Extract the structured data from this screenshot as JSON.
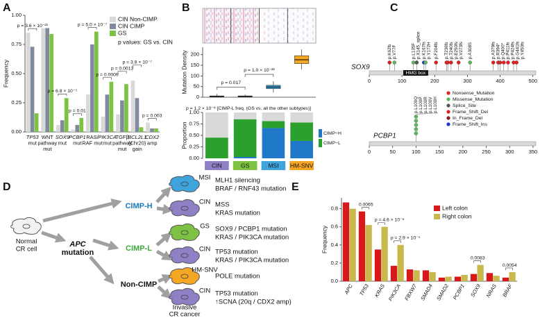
{
  "panel_labels": [
    "A",
    "B",
    "C",
    "D",
    "E"
  ],
  "chart_data": [
    {
      "type": "bar",
      "ylabel": "Frequency",
      "categories": [
        [
          "TP53",
          "mut"
        ],
        [
          "WNT",
          "pathway",
          "mut"
        ],
        [
          "SOX9",
          "mut"
        ],
        [
          "PCBP1",
          "mut"
        ],
        [
          "RAS/",
          "RAF mut"
        ],
        [
          "PIK3CA",
          "mut"
        ],
        [
          "TGFβ",
          "pathway",
          "mut"
        ],
        [
          "BCL2L1",
          "(Chr20)",
          "gain"
        ],
        [
          "CDX2",
          "amp"
        ]
      ],
      "series": [
        {
          "name": "CIN Non-CIMP",
          "color": "#d9d9d9",
          "values": [
            0.85,
            0.89,
            0.06,
            0.02,
            0.32,
            0.13,
            0.15,
            0.44,
            0.08
          ]
        },
        {
          "name": "CIN CIMP",
          "color": "#7f8a9c",
          "values": [
            0.73,
            0.89,
            0.1,
            0.06,
            0.75,
            0.32,
            0.27,
            0.29,
            0.03
          ]
        },
        {
          "name": "GS",
          "color": "#7dc242",
          "values": [
            0.16,
            0.84,
            0.29,
            0.12,
            0.86,
            0.43,
            0.41,
            0.04,
            0.03
          ]
        }
      ],
      "annotations": [
        "p = 3.6 × 10⁻²¹",
        null,
        "p = 6.8 × 10⁻⁵",
        "p = 0.01",
        "p = 5.0 × 10⁻⁷",
        "p = 0.0009",
        "p = 0.0013",
        "p = 3.8 × 10⁻⁷",
        "p = 0.003"
      ],
      "note": "p values: GS vs. CIN",
      "ylim": [
        0,
        1
      ],
      "yticks": [
        {
          "value": 0,
          "label": "0.00"
        },
        0.25,
        {
          "value": 0.5,
          "label": "0.50"
        },
        0.75,
        {
          "value": 1,
          "label": "1.00"
        }
      ]
    },
    {
      "type": "box",
      "ylabel": "Mutation Density",
      "categories": [
        "CIN",
        "GS",
        "MSI",
        "HM-SNV"
      ],
      "colors": [
        "#8f7fc4",
        "#7dc242",
        "#3fa3dc",
        "#f5a623"
      ],
      "boxes": [
        {
          "min": 0,
          "q1": 2,
          "median": 4,
          "q3": 6,
          "max": 15
        },
        {
          "min": 0,
          "q1": 2,
          "median": 4,
          "q3": 6,
          "max": 13
        },
        {
          "min": 22,
          "q1": 40,
          "median": 48,
          "q3": 56,
          "max": 75
        },
        {
          "min": 130,
          "q1": 158,
          "median": 176,
          "q3": 195,
          "max": 225
        }
      ],
      "comparisons": [
        {
          "between": [
            "CIN",
            "GS"
          ],
          "text": "p = 0.017"
        },
        {
          "between": [
            "GS",
            "MSI"
          ],
          "text": "p = 1.0 × 10⁻²²"
        }
      ],
      "ylim": [
        0,
        235
      ],
      "yticks": [
        0,
        50,
        100,
        150,
        200
      ]
    },
    {
      "type": "stacked_bar",
      "ylabel": "Proportion",
      "categories": [
        "CIN",
        "GS",
        "MSI",
        "HM-SNV"
      ],
      "category_colors": [
        "#8f7fc4",
        "#7dc242",
        "#3fa3dc",
        "#f5a623"
      ],
      "series": [
        {
          "name": "CIMP−H",
          "color": "#1f78c8",
          "values": [
            0,
            0.03,
            0.66,
            0.38
          ]
        },
        {
          "name": "CIMP−L",
          "color": "#2ca02c",
          "values": [
            0.45,
            0.82,
            0.15,
            0.4
          ]
        }
      ],
      "annotation": "p = 1.2 × 10⁻⁸ [CIMP-L freq. (GS vs. all the other subtypes)]",
      "ylim": [
        0,
        1
      ],
      "yticks": [
        {
          "value": 0,
          "label": "0.00"
        },
        0.25,
        {
          "value": 0.5,
          "label": "0.50"
        },
        0.75,
        {
          "value": 1,
          "label": "1.00"
        }
      ]
    },
    {
      "type": "lollipop",
      "gene": "SOX9",
      "domains": [
        {
          "name": "HMG box",
          "start": 104,
          "end": 180
        }
      ],
      "mutations": [
        {
          "label": "p.K62fs",
          "position": 62,
          "type": "Frame_Shift_Del"
        },
        {
          "label": "p.V77F",
          "position": 77,
          "type": "Missense_Mutation"
        },
        {
          "label": "p.L135F",
          "position": 135,
          "type": "Missense_Mutation"
        },
        {
          "label": "p.X145_splice",
          "position": 145,
          "type": "Splice_Site"
        },
        {
          "label": "p.K167fs",
          "position": 167,
          "type": "Frame_Shift_Ins"
        },
        {
          "label": "p.Y172H",
          "position": 172,
          "type": "Missense_Mutation"
        },
        {
          "label": "p.F204fs",
          "position": 204,
          "type": "Frame_Shift_Del"
        },
        {
          "label": "p.T236fs",
          "position": 236,
          "type": "Frame_Shift_Del"
        },
        {
          "label": "p.T240fs",
          "position": 240,
          "type": "Frame_Shift_Del"
        },
        {
          "label": "p.E250fs",
          "position": 250,
          "type": "Frame_Shift_Del"
        },
        {
          "label": "p.V273fs",
          "position": 273,
          "type": "Frame_Shift_Del"
        },
        {
          "label": "p.A308S",
          "position": 308,
          "type": "Missense_Mutation"
        },
        {
          "label": "p.A379fs",
          "position": 379,
          "type": "Frame_Shift_Del"
        },
        {
          "label": "p.R394*",
          "position": 394,
          "type": "Nonsense_Mutation"
        },
        {
          "label": "p.Q400*",
          "position": 400,
          "type": "Nonsense_Mutation"
        },
        {
          "label": "p.P411fs",
          "position": 411,
          "type": "Frame_Shift_Del"
        },
        {
          "label": "p.P424fs",
          "position": 424,
          "type": "Frame_Shift_Del"
        },
        {
          "label": "p.G441fs",
          "position": 441,
          "type": "Frame_Shift_Del"
        },
        {
          "label": "p.Y450fs",
          "position": 450,
          "type": "Frame_Shift_Del"
        }
      ],
      "xlim": [
        0,
        509
      ],
      "xticks": [
        0,
        100,
        200,
        300,
        400,
        500
      ]
    },
    {
      "type": "lollipop",
      "gene": "PCBP1",
      "domains": [],
      "mutations": [
        {
          "label": "p.L100Q",
          "position": 100,
          "type": "Missense_Mutation"
        },
        {
          "label": "p.L100P",
          "position": 100,
          "type": "Missense_Mutation"
        },
        {
          "label": "p.L100R",
          "position": 100,
          "type": "Missense_Mutation"
        },
        {
          "label": "p.L100V",
          "position": 100,
          "type": "Missense_Mutation"
        },
        {
          "label": "p.L100H",
          "position": 100,
          "type": "Missense_Mutation"
        }
      ],
      "xlim": [
        0,
        356
      ],
      "xticks": [
        0,
        50,
        100,
        150,
        200,
        250,
        300,
        350
      ]
    },
    {
      "type": "bar",
      "ylabel": "Frequency",
      "categories": [
        "APC",
        "TP53",
        "KRAS",
        "PIK3CA",
        "FBXW7",
        "SMAD4",
        "SMAD2",
        "PCBP1",
        "SOX9",
        "NRAS",
        "BRAF"
      ],
      "series": [
        {
          "name": "Left colon",
          "color": "#d7191c",
          "values": [
            0.87,
            0.77,
            0.35,
            0.17,
            0.13,
            0.12,
            0.04,
            0.05,
            0.08,
            0.09,
            0.04
          ]
        },
        {
          "name": "Right colon",
          "color": "#c9b84c",
          "values": [
            0.8,
            0.62,
            0.6,
            0.4,
            0.12,
            0.1,
            0.05,
            0.07,
            0.18,
            0.06,
            0.1
          ]
        }
      ],
      "annotations": [
        null,
        "0.0065",
        "p = 4.6 × 10⁻⁶",
        "p = 2.9 × 10⁻⁵",
        null,
        null,
        null,
        null,
        "0.0083",
        null,
        "0.0054"
      ],
      "ylim": [
        0,
        0.92
      ],
      "yticks": [
        {
          "value": 0,
          "label": "0.0"
        },
        0.2,
        0.4,
        0.6,
        0.8
      ]
    }
  ],
  "mutation_types": [
    {
      "name": "Nonsense_Mutation",
      "color": "#d62728"
    },
    {
      "name": "Missense_Mutation",
      "color": "#5cb85c"
    },
    {
      "name": "Splice_Site",
      "color": "#555555"
    },
    {
      "name": "Frame_Shift_Del",
      "color": "#e0201f"
    },
    {
      "name": "In_Frame_Del",
      "color": "#8c1a1a"
    },
    {
      "name": "Frame_Shift_Ins",
      "color": "#2233cc"
    }
  ],
  "diagram": {
    "start": [
      "Normal",
      "CR cell"
    ],
    "trigger": [
      "APC",
      "mutation"
    ],
    "end": [
      "Invasive",
      "CR cancer"
    ],
    "branches": [
      {
        "label": "CIMP-H",
        "color": "#1a7abf",
        "cells": [
          {
            "subtype": "MSI",
            "color": "#3fa3dc",
            "lines": [
              "MLH1 silencing",
              "BRAF / RNF43 mutation"
            ]
          },
          {
            "subtype": "CIN",
            "color": "#8f7fc4",
            "lines": [
              "MSS",
              "KRAS mutation"
            ]
          }
        ]
      },
      {
        "label": "CIMP-L",
        "color": "#3caa3c",
        "cells": [
          {
            "subtype": "GS",
            "color": "#7dc242",
            "lines": [
              "SOX9 / PCBP1 mutation",
              "KRAS / PIK3CA mutation"
            ]
          },
          {
            "subtype": "CIN",
            "color": "#8f7fc4",
            "lines": [
              "TP53 mutation",
              "KRAS / PIK3CA mutation"
            ]
          }
        ]
      },
      {
        "label": "Non-CIMP",
        "color": "#111111",
        "cells": [
          {
            "subtype": "HM-SNV",
            "color": "#f5a623",
            "lines": [
              "POLE mutation"
            ]
          },
          {
            "subtype": "CIN",
            "color": "#8f7fc4",
            "lines": [
              "TP53 mutation",
              "↑SCNA (20q / CDX2 amp)"
            ]
          }
        ]
      }
    ]
  }
}
